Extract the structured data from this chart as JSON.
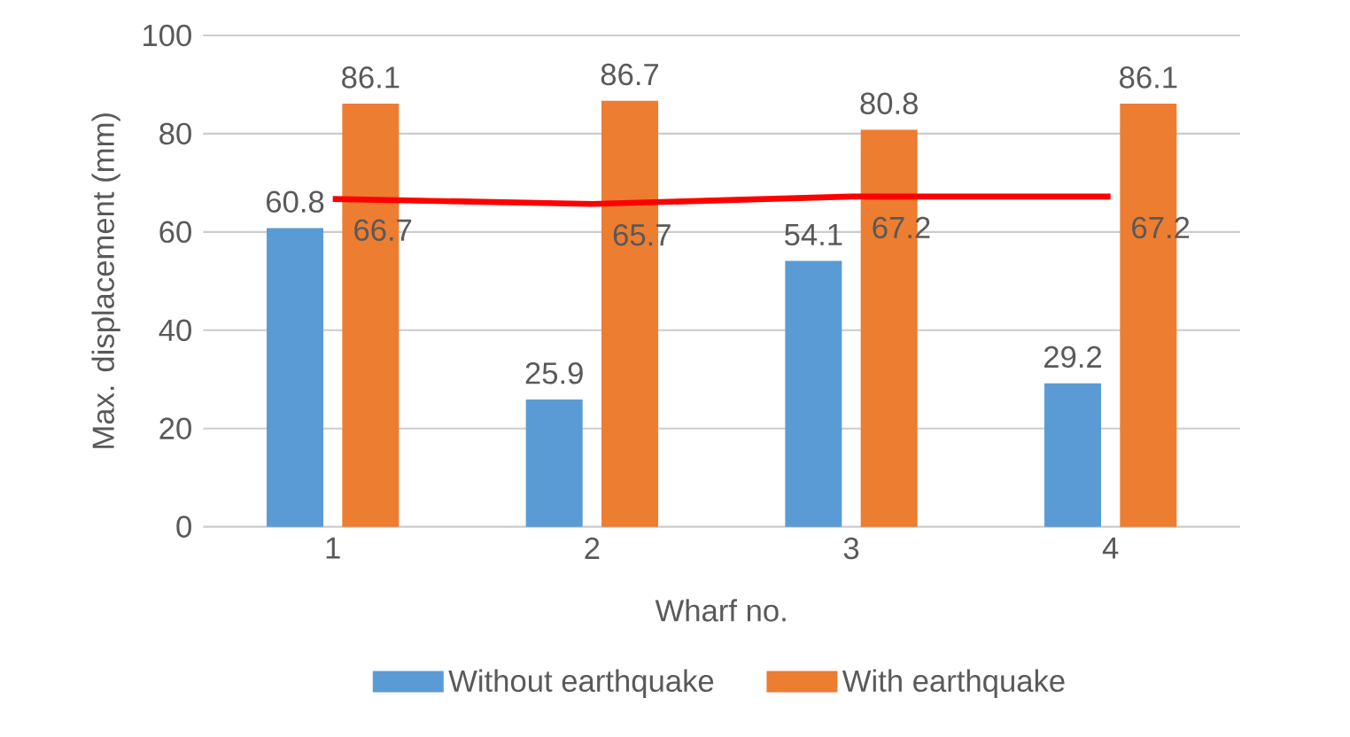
{
  "chart_data": {
    "type": "bar",
    "ylabel": "Max. displacement (mm)",
    "xlabel": "Wharf no.",
    "categories": [
      "1",
      "2",
      "3",
      "4"
    ],
    "series": [
      {
        "name": "Without earthquake",
        "color": "#5b9bd5",
        "values": [
          60.8,
          25.9,
          54.1,
          29.2
        ]
      },
      {
        "name": "With earthquake",
        "color": "#ed7d31",
        "values": [
          86.1,
          86.7,
          80.8,
          86.1
        ]
      },
      {
        "type": "line",
        "color": "#ff0000",
        "values": [
          66.7,
          65.7,
          67.2,
          67.2
        ]
      }
    ],
    "ylim": [
      0,
      100
    ],
    "yticks": [
      0,
      20,
      40,
      60,
      80,
      100
    ],
    "grid": "y",
    "legend": "bottom",
    "data_labels": true,
    "marker": "none"
  }
}
